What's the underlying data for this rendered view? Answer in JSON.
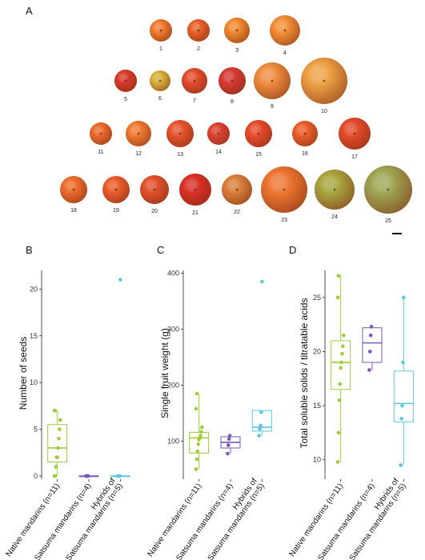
{
  "panels": {
    "a": "A",
    "b": "B",
    "c": "C",
    "d": "D"
  },
  "fruits": {
    "rows": [
      [
        {
          "label": "1",
          "color": "#f07a30"
        },
        {
          "label": "2",
          "color": "#e8602a"
        },
        {
          "label": "3",
          "color": "#f08a2e"
        },
        {
          "label": "4",
          "color": "#f28f36"
        }
      ],
      [
        {
          "label": "5",
          "color": "#d8392a"
        },
        {
          "label": "6",
          "color": "#d7b43b"
        },
        {
          "label": "7",
          "color": "#e34b2d"
        },
        {
          "label": "8",
          "color": "#d53a33"
        },
        {
          "label": "9",
          "color": "#ee8c3f"
        },
        {
          "label": "10",
          "color": "#eea044"
        }
      ],
      [
        {
          "label": "11",
          "color": "#ec6a2c"
        },
        {
          "label": "12",
          "color": "#ef7a31"
        },
        {
          "label": "13",
          "color": "#e4532c"
        },
        {
          "label": "14",
          "color": "#db4231"
        },
        {
          "label": "15",
          "color": "#e44b2a"
        },
        {
          "label": "16",
          "color": "#ea5e2b"
        },
        {
          "label": "17",
          "color": "#e24a2a"
        }
      ],
      [
        {
          "label": "18",
          "color": "#ed6c2c"
        },
        {
          "label": "19",
          "color": "#ea5d2b"
        },
        {
          "label": "20",
          "color": "#e1502c"
        },
        {
          "label": "21",
          "color": "#d92f26"
        },
        {
          "label": "22",
          "color": "#d9803a"
        },
        {
          "label": "23",
          "color": "#ec7530"
        },
        {
          "label": "24",
          "color": "#a8a540"
        },
        {
          "label": "25",
          "color": "#9ea553"
        }
      ]
    ]
  },
  "chart_data": [
    {
      "type": "box",
      "panel": "B",
      "ylabel": "Number of seeds",
      "ylim": [
        0,
        22
      ],
      "yticks": [
        0,
        5,
        10,
        15,
        20
      ],
      "categories": [
        "Native mandarins (n=11)",
        "Satsuma mandarins (n=4)",
        "Hybrids of\nSatsuma mandarins (n=5)"
      ],
      "colors": [
        "#9ccc3c",
        "#7c56b4",
        "#5bc7dc"
      ],
      "series": [
        {
          "q1": 1.5,
          "median": 3,
          "q3": 5.5,
          "whisker_low": 0,
          "whisker_high": 7,
          "points": [
            0,
            0,
            1,
            2,
            2,
            3,
            4,
            5,
            6,
            7,
            7
          ],
          "outliers": []
        },
        {
          "q1": 0,
          "median": 0,
          "q3": 0,
          "whisker_low": 0,
          "whisker_high": 0,
          "points": [
            0,
            0,
            0,
            0
          ],
          "outliers": []
        },
        {
          "q1": 0,
          "median": 0,
          "q3": 0,
          "whisker_low": 0,
          "whisker_high": 0,
          "points": [
            0,
            0,
            0,
            0
          ],
          "outliers": [
            21
          ]
        }
      ]
    },
    {
      "type": "box",
      "panel": "C",
      "ylabel": "Single fruit weight (g)",
      "ylim": [
        38,
        405
      ],
      "yticks": [
        100,
        200,
        300,
        400
      ],
      "categories": [
        "Native mandarins (n=11)",
        "Satsuma mandarins (n=4)",
        "Hybrids of\nSatsuma mandarins (n=5)"
      ],
      "colors": [
        "#9ccc3c",
        "#7c56b4",
        "#5bc7dc"
      ],
      "series": [
        {
          "q1": 79,
          "median": 106,
          "q3": 116,
          "whisker_low": 50,
          "whisker_high": 185,
          "points": [
            50,
            68,
            82,
            95,
            103,
            106,
            110,
            117,
            125,
            158,
            185
          ],
          "outliers": []
        },
        {
          "q1": 88,
          "median": 98,
          "q3": 108,
          "whisker_low": 78,
          "whisker_high": 110,
          "points": [
            78,
            93,
            104,
            110
          ],
          "outliers": []
        },
        {
          "q1": 118,
          "median": 125,
          "q3": 155,
          "whisker_low": 110,
          "whisker_high": 155,
          "points": [
            110,
            122,
            128,
            152
          ],
          "outliers": [
            385
          ]
        }
      ]
    },
    {
      "type": "box",
      "panel": "D",
      "ylabel": "Total soluble solids / titratable acids",
      "ylim": [
        8.5,
        27.5
      ],
      "yticks": [
        10,
        15,
        20,
        25
      ],
      "categories": [
        "Native mandarins (n=11)",
        "Satsuma mandarins (n=4)",
        "Hybrids of\nSatsuma mandarins (n=5)"
      ],
      "colors": [
        "#9ccc3c",
        "#7c56b4",
        "#5bc7dc"
      ],
      "series": [
        {
          "q1": 16.5,
          "median": 19,
          "q3": 21,
          "whisker_low": 9.8,
          "whisker_high": 27,
          "points": [
            9.8,
            12.5,
            15.5,
            17.0,
            18.5,
            19.0,
            19.8,
            20.5,
            21.5,
            25.0,
            27.0
          ],
          "outliers": []
        },
        {
          "q1": 19,
          "median": 20.8,
          "q3": 22.2,
          "whisker_low": 18.3,
          "whisker_high": 22.3,
          "points": [
            18.3,
            20.0,
            21.5,
            22.3
          ],
          "outliers": []
        },
        {
          "q1": 13.5,
          "median": 15.2,
          "q3": 18.2,
          "whisker_low": 9.5,
          "whisker_high": 25,
          "points": [
            9.5,
            13.8,
            15.0,
            19.0,
            25.0
          ],
          "outliers": []
        }
      ]
    }
  ],
  "colors": {
    "axis": "#222222",
    "outline": "#6b6b6b"
  }
}
